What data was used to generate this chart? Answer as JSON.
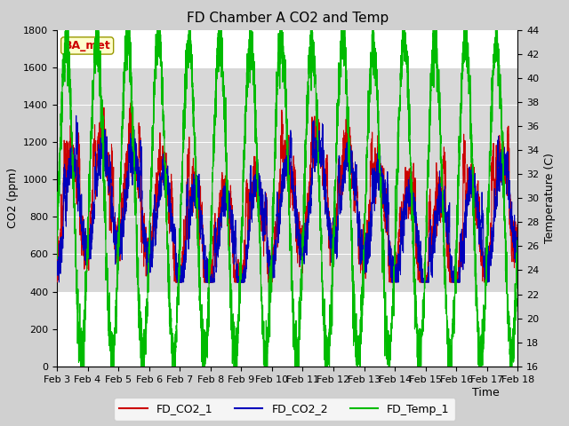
{
  "title": "FD Chamber A CO2 and Temp",
  "xlabel": "Time",
  "ylabel_left": "CO2 (ppm)",
  "ylabel_right": "Temperature (C)",
  "xlim_days": [
    3,
    18
  ],
  "ylim_left": [
    0,
    1800
  ],
  "ylim_right": [
    16,
    44
  ],
  "xtick_labels": [
    "Feb 3",
    "Feb 4",
    "Feb 5",
    "Feb 6",
    "Feb 7",
    "Feb 8",
    "Feb 9",
    "Feb 10",
    "Feb 11",
    "Feb 12",
    "Feb 13",
    "Feb 14",
    "Feb 15",
    "Feb 16",
    "Feb 17",
    "Feb 18"
  ],
  "yticks_left": [
    0,
    200,
    400,
    600,
    800,
    1000,
    1200,
    1400,
    1600,
    1800
  ],
  "yticks_right": [
    16,
    18,
    20,
    22,
    24,
    26,
    28,
    30,
    32,
    34,
    36,
    38,
    40,
    42,
    44
  ],
  "color_co2_1": "#cc0000",
  "color_co2_2": "#0000bb",
  "color_temp": "#00bb00",
  "legend_label_1": "FD_CO2_1",
  "legend_label_2": "FD_CO2_2",
  "legend_label_3": "FD_Temp_1",
  "watermark_text": "BA_met",
  "watermark_color": "#cc0000",
  "watermark_bg": "#ffffcc",
  "watermark_edge": "#999900",
  "fig_bg": "#d0d0d0",
  "plot_bg": "#ffffff",
  "shaded_ymin": 400,
  "shaded_ymax": 1600,
  "shaded_color": "#d8d8d8",
  "grid_color": "#cccccc",
  "title_fontsize": 11,
  "axis_fontsize": 9,
  "tick_fontsize": 8
}
